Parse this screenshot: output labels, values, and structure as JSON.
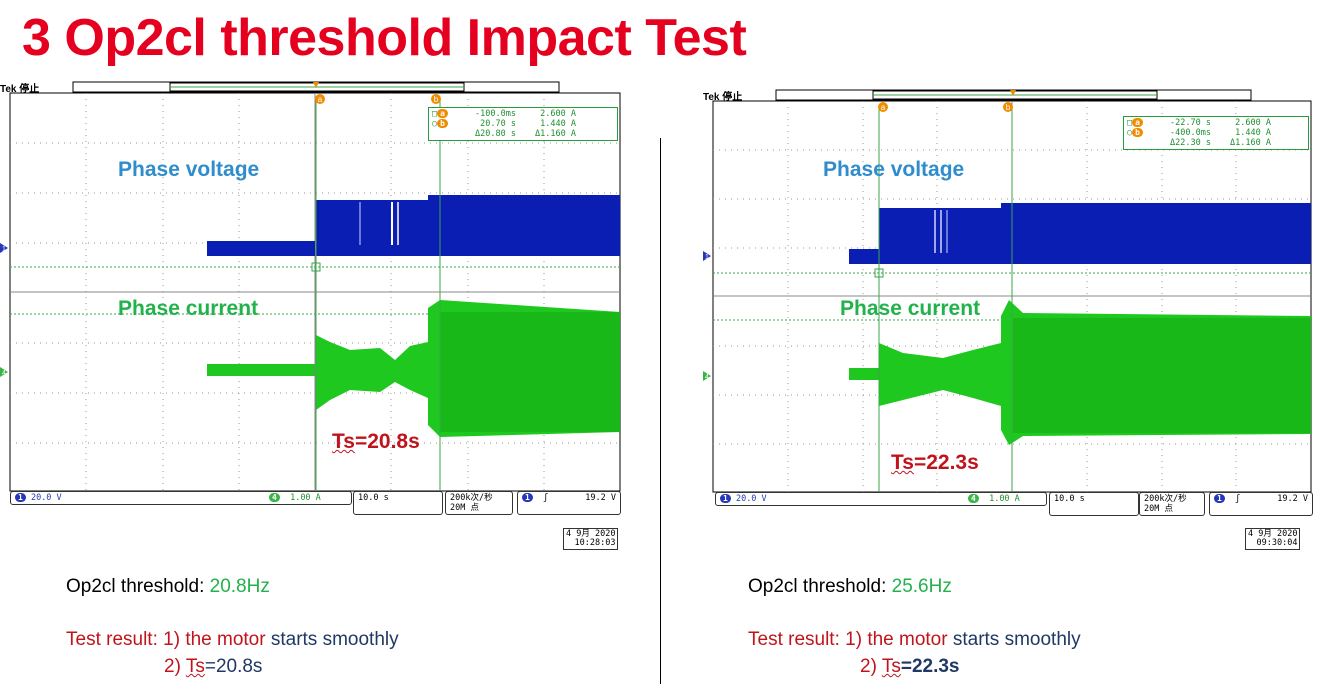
{
  "title": "3 Op2cl threshold Impact Test",
  "scopes": [
    {
      "tek_label": "Tek 停止",
      "phase_voltage_label": "Phase voltage",
      "phase_current_label": "Phase current",
      "ts_label_prefix": "Ts",
      "ts_label_value": "=20.8s",
      "cursor_a_marker": "a",
      "cursor_b_marker": "b",
      "ch1_marker": "1",
      "ch4_marker": "4",
      "cursor_readout": {
        "row_a": {
          "time": "-100.0ms",
          "amp": "2.600 A"
        },
        "row_b": {
          "time": "20.70 s",
          "amp": "1.440 A"
        },
        "row_delta": {
          "time": "Δ20.80 s",
          "amp": "Δ1.160 A"
        }
      },
      "status": {
        "ch1_scale": "20.0 V",
        "ch4_scale": "1.00 A",
        "timebase": "10.0 s",
        "sample_rate_line1": "200k次/秒",
        "sample_rate_line2": "20M 点",
        "trigger_level": "19.2 V"
      },
      "date_line1": "4 9月 2020",
      "date_line2": "10:28:03",
      "note": {
        "threshold_label": "Op2cl threshold:",
        "threshold_value": "20.8Hz",
        "result_label": "Test result: 1) the motor",
        "result_starts": "starts smoothly",
        "result_line2_prefix": "2) ",
        "result_line2_ts": "Ts",
        "result_line2_value": "=20.8s"
      }
    },
    {
      "tek_label": "Tek 停止",
      "phase_voltage_label": "Phase voltage",
      "phase_current_label": "Phase current",
      "ts_label_prefix": "Ts",
      "ts_label_value": "=22.3s",
      "cursor_a_marker": "a",
      "cursor_b_marker": "b",
      "ch1_marker": "1",
      "ch4_marker": "4",
      "cursor_readout": {
        "row_a": {
          "time": "-22.70 s",
          "amp": "2.600 A"
        },
        "row_b": {
          "time": "-400.0ms",
          "amp": "1.440 A"
        },
        "row_delta": {
          "time": "Δ22.30 s",
          "amp": "Δ1.160 A"
        }
      },
      "status": {
        "ch1_scale": "20.0 V",
        "ch4_scale": "1.00 A",
        "timebase": "10.0 s",
        "sample_rate_line1": "200k次/秒",
        "sample_rate_line2": "20M 点",
        "trigger_level": "19.2 V"
      },
      "date_line1": "4 9月 2020",
      "date_line2": "09:30:04",
      "note": {
        "threshold_label": "Op2cl threshold:",
        "threshold_value": "25.6Hz",
        "result_label": "Test result: 1) the motor",
        "result_starts": "starts smoothly",
        "result_line2_prefix": "2) ",
        "result_line2_ts": "Ts",
        "result_line2_value": "=22.3s"
      }
    }
  ],
  "colors": {
    "title": "#e4001e",
    "voltage_trace": "#0a1eb4",
    "current_trace": "#1ec81e",
    "cursor": "#2a9b3c",
    "ts_red": "#c0141c"
  }
}
